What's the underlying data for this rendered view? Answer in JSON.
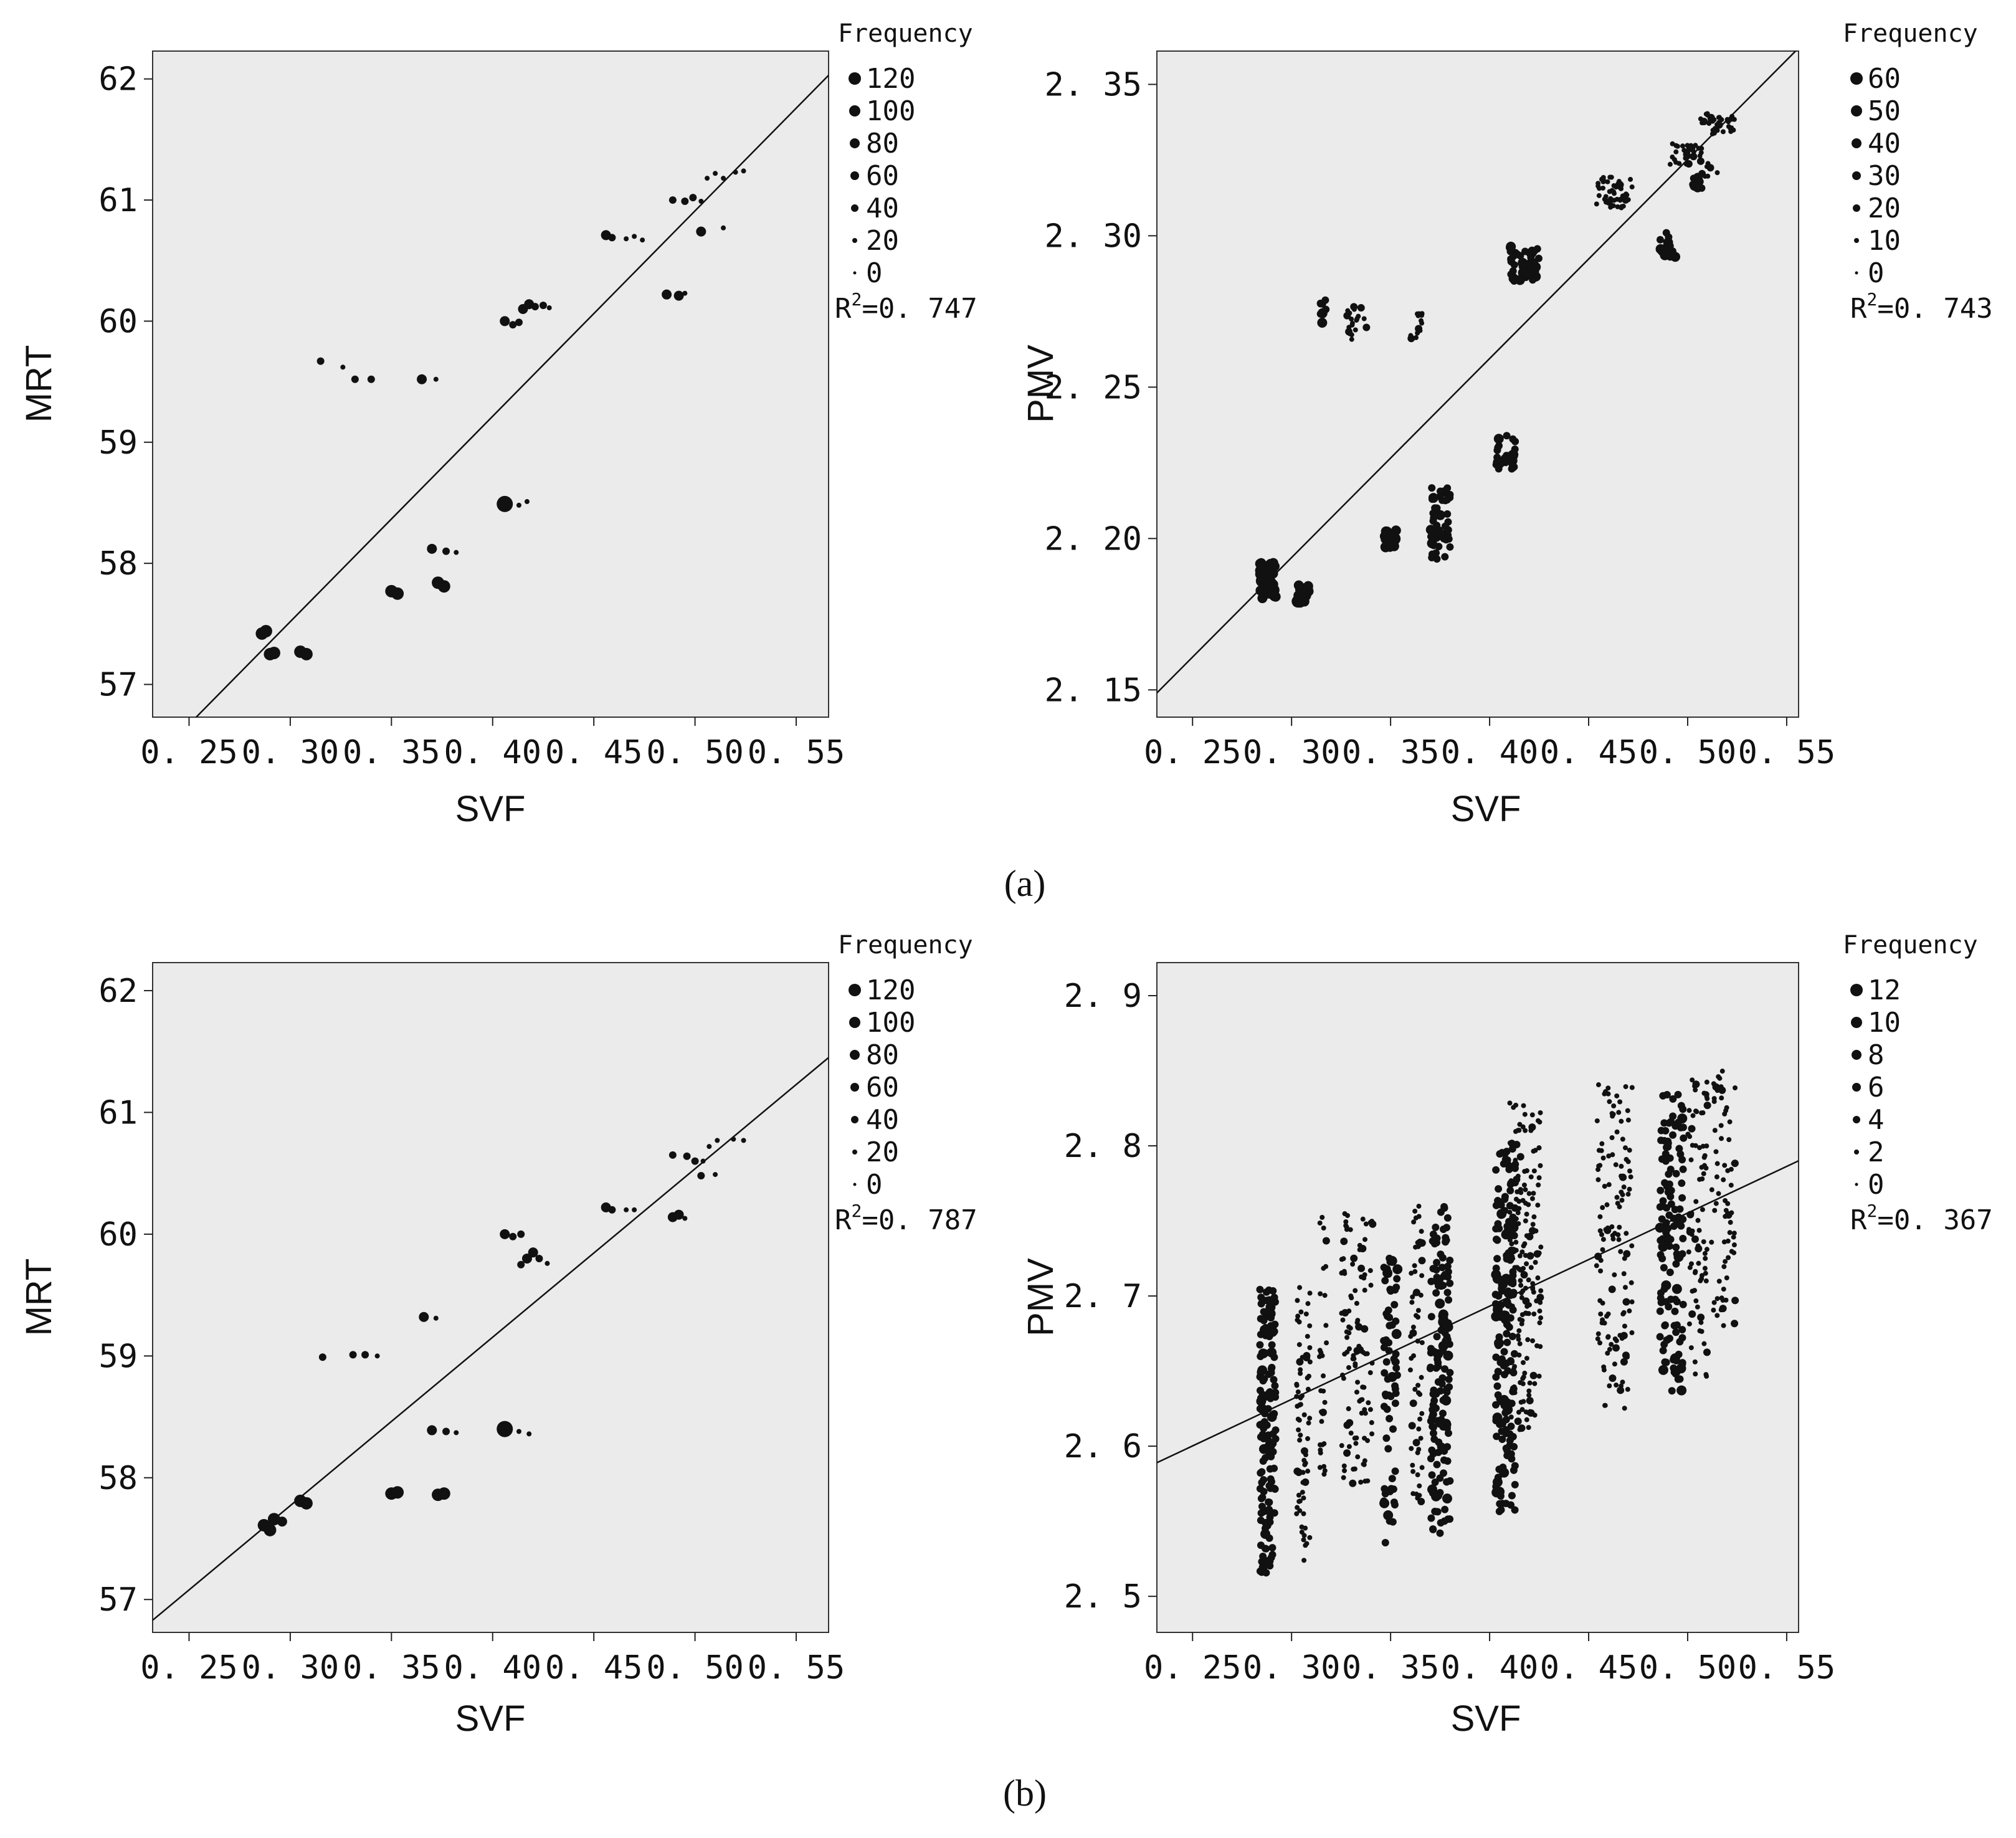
{
  "chart_data": [
    {
      "type": "scatter",
      "xlabel": "SVF",
      "ylabel": "MRT",
      "xlim": [
        0.232,
        0.566
      ],
      "ylim": [
        56.73,
        62.23
      ],
      "xticks": [
        0.25,
        0.3,
        0.35,
        0.4,
        0.45,
        0.5,
        0.55
      ],
      "xtick_labels": [
        "0. 25",
        "0. 30",
        "0. 35",
        "0. 40",
        "0. 45",
        "0. 50",
        "0. 55"
      ],
      "yticks": [
        57,
        58,
        59,
        60,
        61,
        62
      ],
      "ytick_labels": [
        "57",
        "58",
        "59",
        "60",
        "61",
        "62"
      ],
      "legend_title": "Frequency",
      "legend_items": [
        "120",
        "100",
        "80",
        "60",
        "40",
        "20",
        "0"
      ],
      "r2_prefix": "R",
      "r2_sup": "2",
      "r2_value": "=0. 747",
      "fit_line": {
        "x": [
          0.25,
          0.566
        ],
        "y": [
          56.67,
          62.03
        ]
      },
      "points": [
        {
          "x": 0.288,
          "y": 57.44,
          "s": 3
        },
        {
          "x": 0.286,
          "y": 57.42,
          "s": 3
        },
        {
          "x": 0.292,
          "y": 57.26,
          "s": 3
        },
        {
          "x": 0.29,
          "y": 57.25,
          "s": 3
        },
        {
          "x": 0.305,
          "y": 57.27,
          "s": 3
        },
        {
          "x": 0.308,
          "y": 57.25,
          "s": 3
        },
        {
          "x": 0.315,
          "y": 59.67,
          "s": 1
        },
        {
          "x": 0.326,
          "y": 59.62,
          "s": 0
        },
        {
          "x": 0.332,
          "y": 59.52,
          "s": 1
        },
        {
          "x": 0.34,
          "y": 59.52,
          "s": 1
        },
        {
          "x": 0.35,
          "y": 57.77,
          "s": 3
        },
        {
          "x": 0.353,
          "y": 57.75,
          "s": 3
        },
        {
          "x": 0.365,
          "y": 59.52,
          "s": 2
        },
        {
          "x": 0.372,
          "y": 59.52,
          "s": 0
        },
        {
          "x": 0.37,
          "y": 58.12,
          "s": 2
        },
        {
          "x": 0.377,
          "y": 58.1,
          "s": 1
        },
        {
          "x": 0.382,
          "y": 58.09,
          "s": 0
        },
        {
          "x": 0.373,
          "y": 57.84,
          "s": 3
        },
        {
          "x": 0.376,
          "y": 57.81,
          "s": 3
        },
        {
          "x": 0.406,
          "y": 60.0,
          "s": 2
        },
        {
          "x": 0.41,
          "y": 59.97,
          "s": 1
        },
        {
          "x": 0.413,
          "y": 59.99,
          "s": 1
        },
        {
          "x": 0.415,
          "y": 60.1,
          "s": 2
        },
        {
          "x": 0.418,
          "y": 60.14,
          "s": 2
        },
        {
          "x": 0.421,
          "y": 60.12,
          "s": 1
        },
        {
          "x": 0.425,
          "y": 60.13,
          "s": 1
        },
        {
          "x": 0.428,
          "y": 60.11,
          "s": 0
        },
        {
          "x": 0.406,
          "y": 58.49,
          "s": 4
        },
        {
          "x": 0.413,
          "y": 58.48,
          "s": 0
        },
        {
          "x": 0.417,
          "y": 58.51,
          "s": 0
        },
        {
          "x": 0.456,
          "y": 60.71,
          "s": 2
        },
        {
          "x": 0.459,
          "y": 60.69,
          "s": 1
        },
        {
          "x": 0.466,
          "y": 60.68,
          "s": 0
        },
        {
          "x": 0.47,
          "y": 60.7,
          "s": 0
        },
        {
          "x": 0.474,
          "y": 60.67,
          "s": 0
        },
        {
          "x": 0.486,
          "y": 60.22,
          "s": 2
        },
        {
          "x": 0.492,
          "y": 60.21,
          "s": 2
        },
        {
          "x": 0.495,
          "y": 60.23,
          "s": 0
        },
        {
          "x": 0.489,
          "y": 61.0,
          "s": 1
        },
        {
          "x": 0.495,
          "y": 60.99,
          "s": 1
        },
        {
          "x": 0.499,
          "y": 61.02,
          "s": 1
        },
        {
          "x": 0.503,
          "y": 60.99,
          "s": 0
        },
        {
          "x": 0.503,
          "y": 60.74,
          "s": 2
        },
        {
          "x": 0.506,
          "y": 61.18,
          "s": 0
        },
        {
          "x": 0.51,
          "y": 61.22,
          "s": 0
        },
        {
          "x": 0.514,
          "y": 61.18,
          "s": 0
        },
        {
          "x": 0.52,
          "y": 61.23,
          "s": 0
        },
        {
          "x": 0.514,
          "y": 60.77,
          "s": 0
        },
        {
          "x": 0.524,
          "y": 61.24,
          "s": 0
        }
      ]
    },
    {
      "type": "scatter",
      "xlabel": "SVF",
      "ylabel": "PMV",
      "xlim": [
        0.232,
        0.556
      ],
      "ylim": [
        2.141,
        2.361
      ],
      "xticks": [
        0.25,
        0.3,
        0.35,
        0.4,
        0.45,
        0.5,
        0.55
      ],
      "xtick_labels": [
        "0. 25",
        "0. 30",
        "0. 35",
        "0. 40",
        "0. 45",
        "0. 50",
        "0. 55"
      ],
      "yticks": [
        2.15,
        2.2,
        2.25,
        2.3,
        2.35
      ],
      "ytick_labels": [
        "2. 15",
        "2. 20",
        "2. 25",
        "2. 30",
        "2. 35"
      ],
      "legend_title": "Frequency",
      "legend_items": [
        "60",
        "50",
        "40",
        "30",
        "20",
        "10",
        "0"
      ],
      "r2_prefix": "R",
      "r2_sup": "2",
      "r2_value": "=0. 743",
      "fit_line": {
        "x": [
          0.232,
          0.556
        ],
        "y": [
          2.149,
          2.362
        ]
      },
      "clusters": [
        {
          "x": 0.288,
          "y": 2.186,
          "w": 0.008,
          "h": 0.012,
          "n": 45,
          "s": 2
        },
        {
          "x": 0.306,
          "y": 2.182,
          "w": 0.006,
          "h": 0.006,
          "n": 25,
          "s": 2
        },
        {
          "x": 0.316,
          "y": 2.275,
          "w": 0.003,
          "h": 0.008,
          "n": 8,
          "s": 1
        },
        {
          "x": 0.333,
          "y": 2.271,
          "w": 0.01,
          "h": 0.012,
          "n": 22,
          "s": 0
        },
        {
          "x": 0.363,
          "y": 2.27,
          "w": 0.006,
          "h": 0.01,
          "n": 14,
          "s": 0
        },
        {
          "x": 0.35,
          "y": 2.2,
          "w": 0.006,
          "h": 0.006,
          "n": 18,
          "s": 2
        },
        {
          "x": 0.375,
          "y": 2.205,
          "w": 0.01,
          "h": 0.025,
          "n": 55,
          "s": 1
        },
        {
          "x": 0.408,
          "y": 2.229,
          "w": 0.01,
          "h": 0.012,
          "n": 30,
          "s": 1
        },
        {
          "x": 0.417,
          "y": 2.291,
          "w": 0.016,
          "h": 0.012,
          "n": 45,
          "s": 1
        },
        {
          "x": 0.463,
          "y": 2.314,
          "w": 0.018,
          "h": 0.012,
          "n": 50,
          "s": 0
        },
        {
          "x": 0.49,
          "y": 2.297,
          "w": 0.008,
          "h": 0.008,
          "n": 24,
          "s": 1
        },
        {
          "x": 0.5,
          "y": 2.327,
          "w": 0.018,
          "h": 0.007,
          "n": 30,
          "s": 0
        },
        {
          "x": 0.515,
          "y": 2.337,
          "w": 0.018,
          "h": 0.007,
          "n": 35,
          "s": 0
        },
        {
          "x": 0.505,
          "y": 2.318,
          "w": 0.005,
          "h": 0.008,
          "n": 12,
          "s": 1
        },
        {
          "x": 0.512,
          "y": 2.322,
          "w": 0.008,
          "h": 0.005,
          "n": 6,
          "s": 0
        }
      ]
    },
    {
      "type": "scatter",
      "xlabel": "SVF",
      "ylabel": "MRT",
      "xlim": [
        0.232,
        0.566
      ],
      "ylim": [
        56.73,
        62.23
      ],
      "xticks": [
        0.25,
        0.3,
        0.35,
        0.4,
        0.45,
        0.5,
        0.55
      ],
      "xtick_labels": [
        "0. 25",
        "0. 30",
        "0. 35",
        "0. 40",
        "0. 45",
        "0. 50",
        "0. 55"
      ],
      "yticks": [
        57,
        58,
        59,
        60,
        61,
        62
      ],
      "ytick_labels": [
        "57",
        "58",
        "59",
        "60",
        "61",
        "62"
      ],
      "legend_title": "Frequency",
      "legend_items": [
        "120",
        "100",
        "80",
        "60",
        "40",
        "20",
        "0"
      ],
      "r2_prefix": "R",
      "r2_sup": "2",
      "r2_value": "=0. 787",
      "fit_line": {
        "x": [
          0.232,
          0.566
        ],
        "y": [
          56.83,
          61.45
        ]
      },
      "points": [
        {
          "x": 0.287,
          "y": 57.61,
          "s": 3
        },
        {
          "x": 0.29,
          "y": 57.57,
          "s": 3
        },
        {
          "x": 0.292,
          "y": 57.66,
          "s": 3
        },
        {
          "x": 0.296,
          "y": 57.64,
          "s": 2
        },
        {
          "x": 0.305,
          "y": 57.81,
          "s": 3
        },
        {
          "x": 0.308,
          "y": 57.79,
          "s": 3
        },
        {
          "x": 0.316,
          "y": 58.99,
          "s": 1
        },
        {
          "x": 0.331,
          "y": 59.01,
          "s": 1
        },
        {
          "x": 0.337,
          "y": 59.01,
          "s": 1
        },
        {
          "x": 0.343,
          "y": 59.0,
          "s": 0
        },
        {
          "x": 0.35,
          "y": 57.87,
          "s": 3
        },
        {
          "x": 0.353,
          "y": 57.88,
          "s": 3
        },
        {
          "x": 0.366,
          "y": 59.32,
          "s": 2
        },
        {
          "x": 0.372,
          "y": 59.31,
          "s": 0
        },
        {
          "x": 0.37,
          "y": 58.39,
          "s": 2
        },
        {
          "x": 0.377,
          "y": 58.38,
          "s": 1
        },
        {
          "x": 0.382,
          "y": 58.37,
          "s": 0
        },
        {
          "x": 0.373,
          "y": 57.86,
          "s": 3
        },
        {
          "x": 0.376,
          "y": 57.87,
          "s": 3
        },
        {
          "x": 0.406,
          "y": 60.0,
          "s": 2
        },
        {
          "x": 0.41,
          "y": 59.98,
          "s": 1
        },
        {
          "x": 0.414,
          "y": 60.0,
          "s": 1
        },
        {
          "x": 0.414,
          "y": 59.75,
          "s": 1
        },
        {
          "x": 0.417,
          "y": 59.8,
          "s": 2
        },
        {
          "x": 0.42,
          "y": 59.85,
          "s": 2
        },
        {
          "x": 0.423,
          "y": 59.8,
          "s": 1
        },
        {
          "x": 0.427,
          "y": 59.76,
          "s": 0
        },
        {
          "x": 0.406,
          "y": 58.4,
          "s": 4
        },
        {
          "x": 0.413,
          "y": 58.38,
          "s": 0
        },
        {
          "x": 0.418,
          "y": 58.36,
          "s": 0
        },
        {
          "x": 0.456,
          "y": 60.22,
          "s": 2
        },
        {
          "x": 0.459,
          "y": 60.2,
          "s": 1
        },
        {
          "x": 0.466,
          "y": 60.2,
          "s": 0
        },
        {
          "x": 0.47,
          "y": 60.2,
          "s": 0
        },
        {
          "x": 0.489,
          "y": 60.14,
          "s": 2
        },
        {
          "x": 0.492,
          "y": 60.16,
          "s": 2
        },
        {
          "x": 0.495,
          "y": 60.13,
          "s": 0
        },
        {
          "x": 0.489,
          "y": 60.65,
          "s": 1
        },
        {
          "x": 0.496,
          "y": 60.64,
          "s": 1
        },
        {
          "x": 0.5,
          "y": 60.6,
          "s": 1
        },
        {
          "x": 0.504,
          "y": 60.6,
          "s": 0
        },
        {
          "x": 0.503,
          "y": 60.48,
          "s": 1
        },
        {
          "x": 0.507,
          "y": 60.72,
          "s": 0
        },
        {
          "x": 0.511,
          "y": 60.77,
          "s": 0
        },
        {
          "x": 0.51,
          "y": 60.49,
          "s": 0
        },
        {
          "x": 0.519,
          "y": 60.78,
          "s": 0
        },
        {
          "x": 0.524,
          "y": 60.77,
          "s": 0
        }
      ]
    },
    {
      "type": "scatter",
      "xlabel": "SVF",
      "ylabel": "PMV",
      "xlim": [
        0.232,
        0.556
      ],
      "ylim": [
        2.476,
        2.922
      ],
      "xticks": [
        0.25,
        0.3,
        0.35,
        0.4,
        0.45,
        0.5,
        0.55
      ],
      "xtick_labels": [
        "0. 25",
        "0. 30",
        "0. 35",
        "0. 40",
        "0. 45",
        "0. 50",
        "0. 55"
      ],
      "yticks": [
        2.5,
        2.6,
        2.7,
        2.8,
        2.9
      ],
      "ytick_labels": [
        "2. 5",
        "2. 6",
        "2. 7",
        "2. 8",
        "2. 9"
      ],
      "legend_title": "Frequency",
      "legend_items": [
        "12",
        "10",
        "8",
        "6",
        "4",
        "2",
        "0"
      ],
      "r2_prefix": "R",
      "r2_sup": "2",
      "r2_value": "=0. 367",
      "fit_line": {
        "x": [
          0.232,
          0.556
        ],
        "y": [
          2.589,
          2.79
        ]
      },
      "clusters": [
        {
          "x": 0.288,
          "y": 2.61,
          "w": 0.008,
          "h": 0.19,
          "n": 160,
          "s": 1
        },
        {
          "x": 0.306,
          "y": 2.615,
          "w": 0.007,
          "h": 0.19,
          "n": 70,
          "s": 0
        },
        {
          "x": 0.316,
          "y": 2.665,
          "w": 0.004,
          "h": 0.18,
          "n": 30,
          "s": 0
        },
        {
          "x": 0.333,
          "y": 2.665,
          "w": 0.016,
          "h": 0.18,
          "n": 110,
          "s": 0
        },
        {
          "x": 0.35,
          "y": 2.635,
          "w": 0.007,
          "h": 0.2,
          "n": 70,
          "s": 1
        },
        {
          "x": 0.363,
          "y": 2.66,
          "w": 0.006,
          "h": 0.2,
          "n": 60,
          "s": 0
        },
        {
          "x": 0.375,
          "y": 2.65,
          "w": 0.01,
          "h": 0.22,
          "n": 150,
          "s": 1
        },
        {
          "x": 0.408,
          "y": 2.68,
          "w": 0.01,
          "h": 0.25,
          "n": 170,
          "s": 1
        },
        {
          "x": 0.418,
          "y": 2.72,
          "w": 0.016,
          "h": 0.22,
          "n": 170,
          "s": 0
        },
        {
          "x": 0.463,
          "y": 2.735,
          "w": 0.018,
          "h": 0.22,
          "n": 130,
          "s": 0
        },
        {
          "x": 0.492,
          "y": 2.735,
          "w": 0.012,
          "h": 0.2,
          "n": 130,
          "s": 1
        },
        {
          "x": 0.505,
          "y": 2.745,
          "w": 0.01,
          "h": 0.2,
          "n": 80,
          "s": 0
        },
        {
          "x": 0.518,
          "y": 2.765,
          "w": 0.012,
          "h": 0.17,
          "n": 70,
          "s": 0
        }
      ]
    }
  ],
  "captions": [
    "(a)",
    "(b)"
  ]
}
